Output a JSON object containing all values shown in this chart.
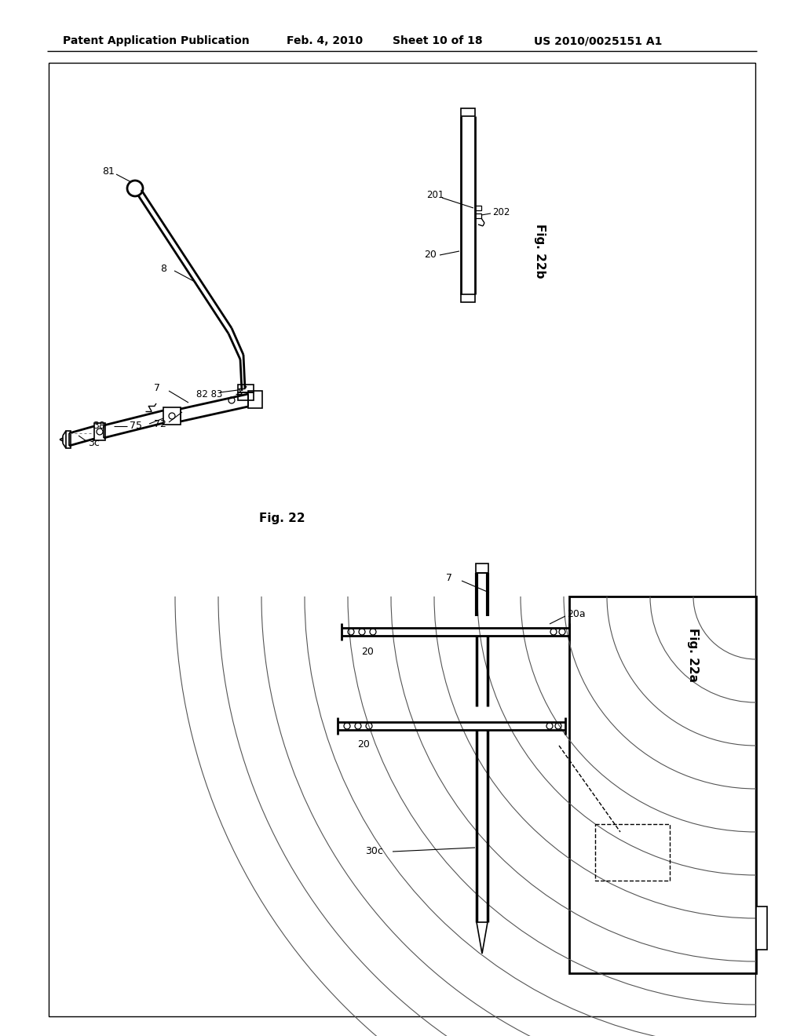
{
  "background_color": "#ffffff",
  "header_text": "Patent Application Publication",
  "header_date": "Feb. 4, 2010",
  "header_sheet": "Sheet 10 of 18",
  "header_patent": "US 2010/0025151 A1",
  "fig22_label": "Fig. 22",
  "fig22a_label": "Fig. 22a",
  "fig22b_label": "Fig. 22b"
}
